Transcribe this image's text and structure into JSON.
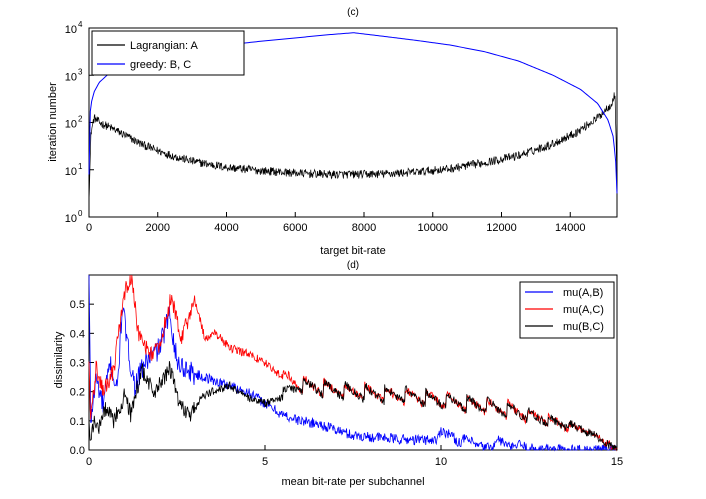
{
  "chart_data": [
    {
      "type": "line",
      "title": "(c)",
      "xlabel": "target bit-rate",
      "ylabel": "iteration number",
      "xlim": [
        0,
        15360
      ],
      "ylim_log10": [
        0,
        4
      ],
      "yscale": "log",
      "x_ticks": [
        "0",
        "2000",
        "4000",
        "6000",
        "8000",
        "10000",
        "12000",
        "14000"
      ],
      "y_ticks": [
        {
          "base": "10",
          "exp": "0"
        },
        {
          "base": "10",
          "exp": "1"
        },
        {
          "base": "10",
          "exp": "2"
        },
        {
          "base": "10",
          "exp": "3"
        },
        {
          "base": "10",
          "exp": "4"
        }
      ],
      "legend": {
        "placement": "top-left"
      },
      "series": [
        {
          "name": "Lagrangian: A",
          "color": "#000000",
          "noisy": true,
          "noise_log10": 0.09,
          "x": [
            0,
            60,
            150,
            300,
            600,
            1000,
            1500,
            2000,
            2500,
            3000,
            4000,
            5000,
            6000,
            7000,
            7700,
            8500,
            9500,
            10500,
            11500,
            12500,
            13500,
            14200,
            14800,
            15200,
            15300,
            15340,
            15360
          ],
          "y_log10": [
            0.4,
            1.8,
            2.1,
            2.0,
            1.9,
            1.75,
            1.55,
            1.4,
            1.28,
            1.18,
            1.05,
            0.98,
            0.93,
            0.9,
            0.9,
            0.91,
            0.95,
            1.02,
            1.15,
            1.3,
            1.55,
            1.8,
            2.1,
            2.4,
            2.6,
            1.5,
            0.3
          ]
        },
        {
          "name": "greedy: B, C",
          "color": "#0000ff",
          "noisy": false,
          "x": [
            0,
            20,
            60,
            150,
            300,
            600,
            1000,
            2000,
            3000,
            4000,
            5000,
            6000,
            7000,
            7700,
            8500,
            9500,
            10500,
            11500,
            12500,
            13500,
            14300,
            14800,
            15100,
            15250,
            15320,
            15360
          ],
          "y_log10": [
            0.9,
            2.1,
            2.4,
            2.65,
            2.85,
            3.05,
            3.2,
            3.42,
            3.55,
            3.64,
            3.72,
            3.79,
            3.86,
            3.9,
            3.83,
            3.74,
            3.64,
            3.5,
            3.3,
            3.0,
            2.7,
            2.4,
            2.05,
            1.7,
            1.2,
            0.5
          ]
        }
      ]
    },
    {
      "type": "line",
      "title": "(d)",
      "xlabel": "mean bit-rate per subchannel",
      "ylabel": "dissimilarity",
      "xlim": [
        0,
        15
      ],
      "ylim": [
        0,
        0.6
      ],
      "x_ticks": [
        "0",
        "5",
        "10",
        "15"
      ],
      "y_ticks": [
        "0.0",
        "0.1",
        "0.2",
        "0.3",
        "0.4",
        "0.5"
      ],
      "y_tick_values": [
        0,
        0.1,
        0.2,
        0.3,
        0.4,
        0.5
      ],
      "legend": {
        "placement": "top-right"
      },
      "series": [
        {
          "name": "mu(A,B)",
          "color": "#0000ff",
          "noise": 0.018,
          "x": [
            0,
            0.05,
            0.2,
            0.4,
            0.6,
            0.8,
            0.95,
            1.1,
            1.3,
            1.6,
            2.0,
            2.3,
            2.5,
            3.0,
            3.5,
            4.0,
            4.5,
            5.0,
            5.5,
            6.0,
            6.5,
            7.0,
            7.5,
            8.0,
            8.5,
            9.0,
            9.5,
            9.9,
            10.0,
            10.3,
            10.5,
            10.7,
            11.0,
            11.3,
            11.5,
            11.6,
            12.0,
            12.2,
            12.5,
            13.0,
            13.5,
            14.0,
            14.5,
            15.0
          ],
          "y": [
            0.6,
            0.1,
            0.25,
            0.15,
            0.3,
            0.2,
            0.5,
            0.35,
            0.22,
            0.3,
            0.35,
            0.47,
            0.3,
            0.26,
            0.24,
            0.22,
            0.2,
            0.16,
            0.12,
            0.1,
            0.09,
            0.07,
            0.05,
            0.045,
            0.04,
            0.035,
            0.035,
            0.035,
            0.07,
            0.05,
            0.025,
            0.04,
            0.015,
            0.01,
            0.01,
            0.04,
            0.005,
            0.02,
            0.005,
            0.003,
            0.002,
            0.002,
            0.001,
            0.0
          ]
        },
        {
          "name": "mu(A,C)",
          "color": "#ff0000",
          "noise": 0.014,
          "sawtooth": true,
          "x": [
            0,
            0.05,
            0.2,
            0.4,
            0.7,
            0.9,
            1.05,
            1.2,
            1.4,
            1.7,
            2.0,
            2.35,
            2.6,
            2.8,
            3.0,
            3.3,
            3.6,
            4.0,
            4.5,
            5.0,
            5.5,
            6.0,
            7.0,
            8.0,
            9.0,
            10.0,
            11.0,
            12.0,
            13.0,
            14.0,
            14.5,
            15.0
          ],
          "y": [
            0.3,
            0.1,
            0.28,
            0.2,
            0.27,
            0.45,
            0.55,
            0.6,
            0.4,
            0.33,
            0.35,
            0.53,
            0.38,
            0.44,
            0.52,
            0.38,
            0.4,
            0.35,
            0.33,
            0.3,
            0.25,
            0.22,
            0.2,
            0.19,
            0.18,
            0.165,
            0.15,
            0.13,
            0.1,
            0.07,
            0.04,
            0.0
          ]
        },
        {
          "name": "mu(B,C)",
          "color": "#000000",
          "noise": 0.014,
          "sawtooth": true,
          "x": [
            0,
            0.05,
            0.15,
            0.3,
            0.5,
            0.7,
            0.9,
            1.0,
            1.2,
            1.5,
            1.8,
            2.0,
            2.3,
            2.6,
            2.9,
            3.2,
            3.5,
            4.0,
            4.5,
            5.0,
            5.5,
            6.0,
            7.0,
            8.0,
            9.0,
            10.0,
            11.0,
            12.0,
            13.0,
            14.0,
            14.5,
            15.0
          ],
          "y": [
            0.1,
            0.02,
            0.1,
            0.08,
            0.15,
            0.1,
            0.15,
            0.18,
            0.12,
            0.28,
            0.2,
            0.22,
            0.28,
            0.15,
            0.12,
            0.18,
            0.2,
            0.22,
            0.18,
            0.16,
            0.18,
            0.22,
            0.2,
            0.19,
            0.18,
            0.165,
            0.15,
            0.13,
            0.1,
            0.07,
            0.04,
            0.0
          ]
        }
      ]
    }
  ]
}
